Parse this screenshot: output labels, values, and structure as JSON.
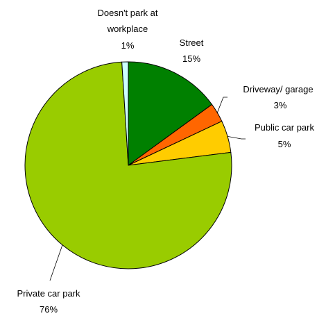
{
  "chart_data": {
    "type": "pie",
    "title": "",
    "start_angle_deg": 90,
    "direction": "clockwise",
    "legend": "none",
    "slices": [
      {
        "label": "Street",
        "value": 15,
        "value_label": "15%",
        "color": "#008000"
      },
      {
        "label": "Driveway/ garage",
        "value": 3,
        "value_label": "3%",
        "color": "#FF6600"
      },
      {
        "label": "Public car park",
        "value": 5,
        "value_label": "5%",
        "color": "#FFCC00"
      },
      {
        "label": "Private car park",
        "value": 76,
        "value_label": "76%",
        "color": "#99CC00"
      },
      {
        "label": "Doesn't park at workplace",
        "value": 1,
        "value_label": "1%",
        "color": "#CCFFFF"
      }
    ]
  }
}
